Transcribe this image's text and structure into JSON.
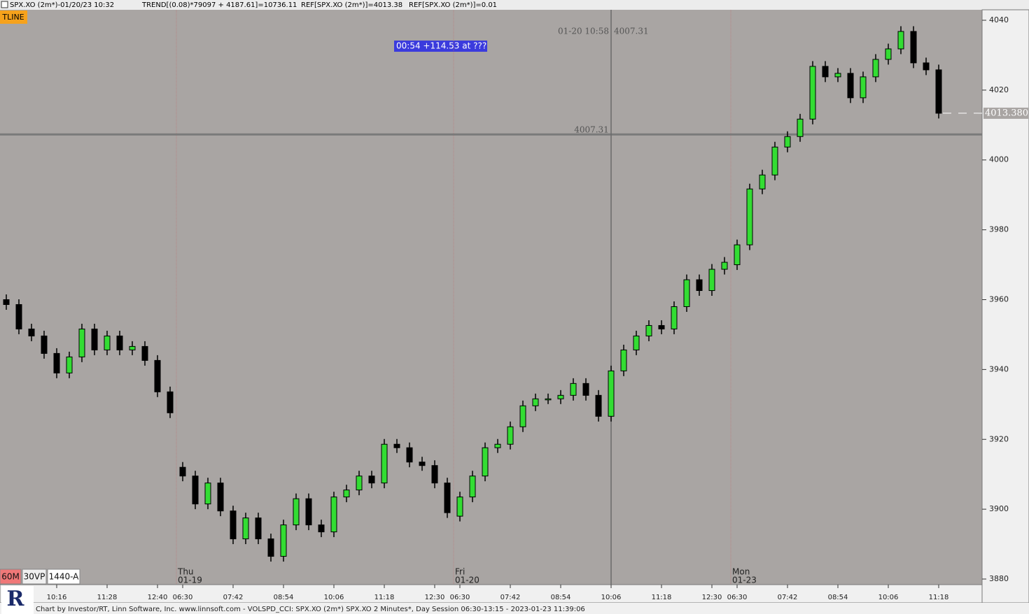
{
  "chart_data": {
    "type": "candlestick",
    "header": {
      "symbol": "SPX.XO (2m*)-01/20/23 10:32",
      "trend": "TREND[(0.08)*79097 + 4187.61]=10736.11",
      "ref1": "REF[SPX.XO (2m*)]=4013.38",
      "ref2": "REF[SPX.XO (2m*)]=0.01"
    },
    "tool_badge": "TLINE",
    "measure_label": "00:54  +114.53 at ???",
    "crosshair": {
      "label": "01-20 10:58",
      "value": 4007.31,
      "index": 48
    },
    "reference_line": {
      "value": 4007.31
    },
    "last_price": {
      "value": 4013.38,
      "label": "4013.380"
    },
    "buttons": [
      "60M",
      "30VP",
      "1440-A"
    ],
    "footer": "Chart by Investor/RT, Linn Software, Inc. www.linnsoft.com - VOLSPD_CCI: SPX.XO (2m*) SPX.XO 2 Minutes*, Day Session 06:30-13:15 - 2023-01-23 11:39:06",
    "logo": "R",
    "sessions": [
      {
        "index": 14,
        "day": "Thu",
        "date": "01-19"
      },
      {
        "index": 36,
        "day": "Fri",
        "date": "01-20"
      },
      {
        "index": 58,
        "day": "Mon",
        "date": "01-23"
      }
    ],
    "categories": [
      null,
      null,
      null,
      null,
      "10:16",
      null,
      null,
      null,
      "11:28",
      null,
      null,
      null,
      "12:40",
      null,
      "06:30",
      null,
      null,
      null,
      "07:42",
      null,
      null,
      null,
      "08:54",
      null,
      null,
      null,
      "10:06",
      null,
      null,
      null,
      "11:18",
      null,
      null,
      null,
      "12:30",
      null,
      "06:30",
      null,
      null,
      null,
      "07:42",
      null,
      null,
      null,
      "08:54",
      null,
      null,
      null,
      "10:06",
      null,
      null,
      null,
      "11:18",
      null,
      null,
      null,
      "12:30",
      null,
      "06:30",
      null,
      null,
      null,
      "07:42",
      null,
      null,
      null,
      "08:54",
      null,
      null,
      null,
      "10:06",
      null,
      null,
      null,
      "11:18"
    ],
    "open": [
      3960.0,
      3958.6,
      3951.6,
      3949.6,
      3944.6,
      3939.0,
      3943.6,
      3951.6,
      3945.6,
      3949.6,
      3945.6,
      3946.6,
      3942.6,
      3933.6,
      3912.0,
      3909.5,
      3901.5,
      3907.5,
      3899.5,
      3891.5,
      3897.5,
      3891.5,
      3886.5,
      3895.5,
      3903.0,
      3895.5,
      3893.5,
      3903.5,
      3905.5,
      3909.5,
      3907.5,
      3918.6,
      3917.6,
      3913.5,
      3912.5,
      3907.5,
      3898.0,
      3903.5,
      3909.5,
      3917.6,
      3918.6,
      3923.6,
      3929.6,
      3931.6,
      3931.6,
      3932.6,
      3936.0,
      3932.6,
      3926.6,
      3939.6,
      3945.6,
      3949.6,
      3952.6,
      3951.6,
      3958.0,
      3965.7,
      3962.6,
      3968.7,
      3970.0,
      3975.7,
      3991.7,
      3995.7,
      4003.7,
      4006.7,
      4011.7,
      4026.8,
      4023.8,
      4024.8,
      4017.8,
      4023.8,
      4028.8,
      4031.8,
      4036.8,
      4027.8,
      4025.8
    ],
    "high": [
      3961.5,
      3960.1,
      3953.1,
      3951.1,
      3946.1,
      3945.1,
      3953.1,
      3953.1,
      3951.1,
      3951.1,
      3948.1,
      3948.1,
      3944.1,
      3935.1,
      3913.5,
      3911.0,
      3909.0,
      3909.0,
      3901.0,
      3899.0,
      3899.0,
      3893.0,
      3897.0,
      3904.5,
      3904.5,
      3897.0,
      3905.0,
      3907.0,
      3911.0,
      3911.0,
      3920.1,
      3920.1,
      3919.1,
      3915.0,
      3914.0,
      3909.0,
      3905.0,
      3911.0,
      3919.1,
      3920.1,
      3925.1,
      3931.1,
      3933.1,
      3933.1,
      3934.1,
      3937.5,
      3937.5,
      3934.1,
      3941.1,
      3947.1,
      3951.1,
      3954.1,
      3954.1,
      3959.5,
      3967.2,
      3967.2,
      3970.2,
      3972.2,
      3977.2,
      3993.2,
      3997.2,
      4005.2,
      4008.2,
      4013.2,
      4028.3,
      4028.3,
      4026.3,
      4026.3,
      4025.3,
      4030.3,
      4033.3,
      4038.3,
      4038.3,
      4029.3,
      4027.3
    ],
    "low": [
      3957.1,
      3950.1,
      3948.1,
      3943.1,
      3937.5,
      3937.5,
      3942.1,
      3944.1,
      3944.1,
      3944.1,
      3944.1,
      3941.1,
      3932.1,
      3926.1,
      3908.0,
      3900.0,
      3900.0,
      3898.0,
      3890.0,
      3890.0,
      3890.0,
      3885.0,
      3885.0,
      3894.0,
      3894.0,
      3892.0,
      3892.0,
      3902.0,
      3904.0,
      3906.0,
      3906.0,
      3916.1,
      3912.0,
      3911.0,
      3906.0,
      3897.5,
      3896.5,
      3902.0,
      3908.0,
      3916.1,
      3917.1,
      3922.1,
      3928.1,
      3930.1,
      3930.1,
      3931.1,
      3931.1,
      3925.1,
      3925.1,
      3938.1,
      3944.1,
      3948.1,
      3950.1,
      3950.1,
      3956.5,
      3961.1,
      3961.1,
      3967.2,
      3968.5,
      3974.2,
      3990.2,
      3994.2,
      4002.2,
      4005.2,
      4010.2,
      4022.3,
      4022.3,
      4016.3,
      4016.3,
      4022.3,
      4027.3,
      4030.3,
      4026.3,
      4024.3,
      4011.88
    ],
    "close": [
      3958.6,
      3951.6,
      3949.6,
      3944.6,
      3939.0,
      3943.6,
      3951.6,
      3945.6,
      3949.6,
      3945.6,
      3946.6,
      3942.6,
      3933.6,
      3927.6,
      3909.5,
      3901.5,
      3907.5,
      3899.5,
      3891.5,
      3897.5,
      3891.5,
      3886.5,
      3895.5,
      3903.0,
      3895.5,
      3893.5,
      3903.5,
      3905.5,
      3909.5,
      3907.5,
      3918.6,
      3917.6,
      3913.5,
      3912.5,
      3907.5,
      3899.0,
      3903.5,
      3909.5,
      3917.6,
      3918.6,
      3923.6,
      3929.6,
      3931.6,
      3931.6,
      3932.6,
      3936.0,
      3932.6,
      3926.6,
      3939.6,
      3945.6,
      3949.6,
      3952.6,
      3951.6,
      3958.0,
      3965.7,
      3962.6,
      3968.7,
      3970.7,
      3975.7,
      3991.7,
      3995.7,
      4003.7,
      4006.7,
      4011.7,
      4026.8,
      4023.8,
      4024.8,
      4017.8,
      4023.8,
      4028.8,
      4031.8,
      4036.8,
      4027.8,
      4025.8,
      4013.38
    ],
    "up_color": "#33dd33",
    "down_color": "#000000",
    "ylim": [
      3878.4,
      4043
    ],
    "yticks": [
      3880,
      3900,
      3920,
      3940,
      3960,
      3980,
      4000,
      4020,
      4040
    ]
  }
}
